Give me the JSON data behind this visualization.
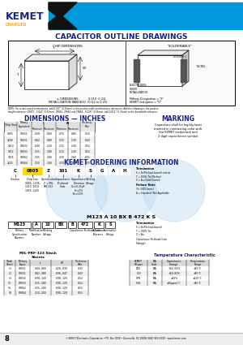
{
  "title": "CAPACITOR OUTLINE DRAWINGS",
  "kemet_color": "#0099dd",
  "kemet_text": "KEMET",
  "kemet_text_color": "#1a237e",
  "header_bg": "#0099dd",
  "charged_color": "#f5a623",
  "note_text": "NOTE: For nickel coated terminations, add 0.010\" (0.25mm) to the positive width and thickness tolerances. Add the following to the positive length tolerance: CR051 - 0.020\" (0.51mm), CR062, CR063 and CR064 - 0.020\" (0.51mm), add 0.012\" (0.30mm) to the bandwidth tolerance.",
  "dim_title": "DIMENSIONS — INCHES",
  "marking_title": "MARKING",
  "marking_text": "Capacitors shall be legibly laser\nmarked in contrasting color with\nthe KEMET trademark and\n2-digit capacitance symbol.",
  "ordering_title": "KEMET ORDERING INFORMATION",
  "footer_text": "© KEMET Electronics Corporation • P.O. Box 5928 • Greenville, SC 29606 (864) 963-6300 • www.kemet.com",
  "page_num": "8",
  "bg_color": "#ffffff",
  "blue_watermark": "#b8d8f0"
}
